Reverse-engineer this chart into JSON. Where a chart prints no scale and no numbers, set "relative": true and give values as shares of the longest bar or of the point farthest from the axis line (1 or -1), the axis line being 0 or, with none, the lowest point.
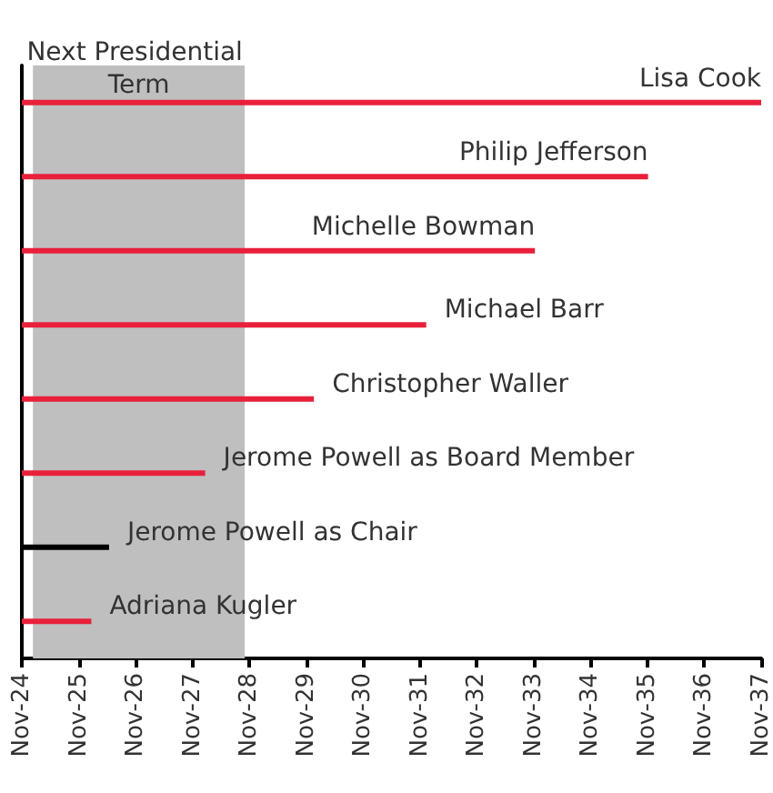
{
  "chart_data": {
    "type": "bar",
    "orientation": "horizontal",
    "relative": true,
    "categories": [
      "Lisa Cook",
      "Philip Jefferson",
      "Michelle Bowman",
      "Michael Barr",
      "Christopher Waller",
      "Jerome Powell as Board Member",
      "Jerome Powell as Chair",
      "Adriana Kugler"
    ],
    "values": [
      1,
      0.847,
      0.694,
      0.547,
      0.395,
      0.248,
      0.118,
      0.094
    ],
    "colors": [
      "#e8203a",
      "#e8203a",
      "#e8203a",
      "#e8203a",
      "#e8203a",
      "#e8203a",
      "#000000",
      "#e8203a"
    ],
    "annotations": [
      "Nov-24",
      "Nov-25",
      "Nov-26",
      "Nov-27",
      "Nov-28",
      "Nov-29",
      "Nov-30",
      "Nov-31",
      "Nov-32",
      "Nov-33",
      "Nov-34",
      "Nov-35",
      "Nov-36",
      "Nov-37"
    ],
    "bands": [
      {
        "axis": "x",
        "from": 0.015,
        "to": 0.3014,
        "label": "Next Presidential Term",
        "color": "#bfbfbf"
      }
    ],
    "tick_labels": "x",
    "grid": false
  }
}
